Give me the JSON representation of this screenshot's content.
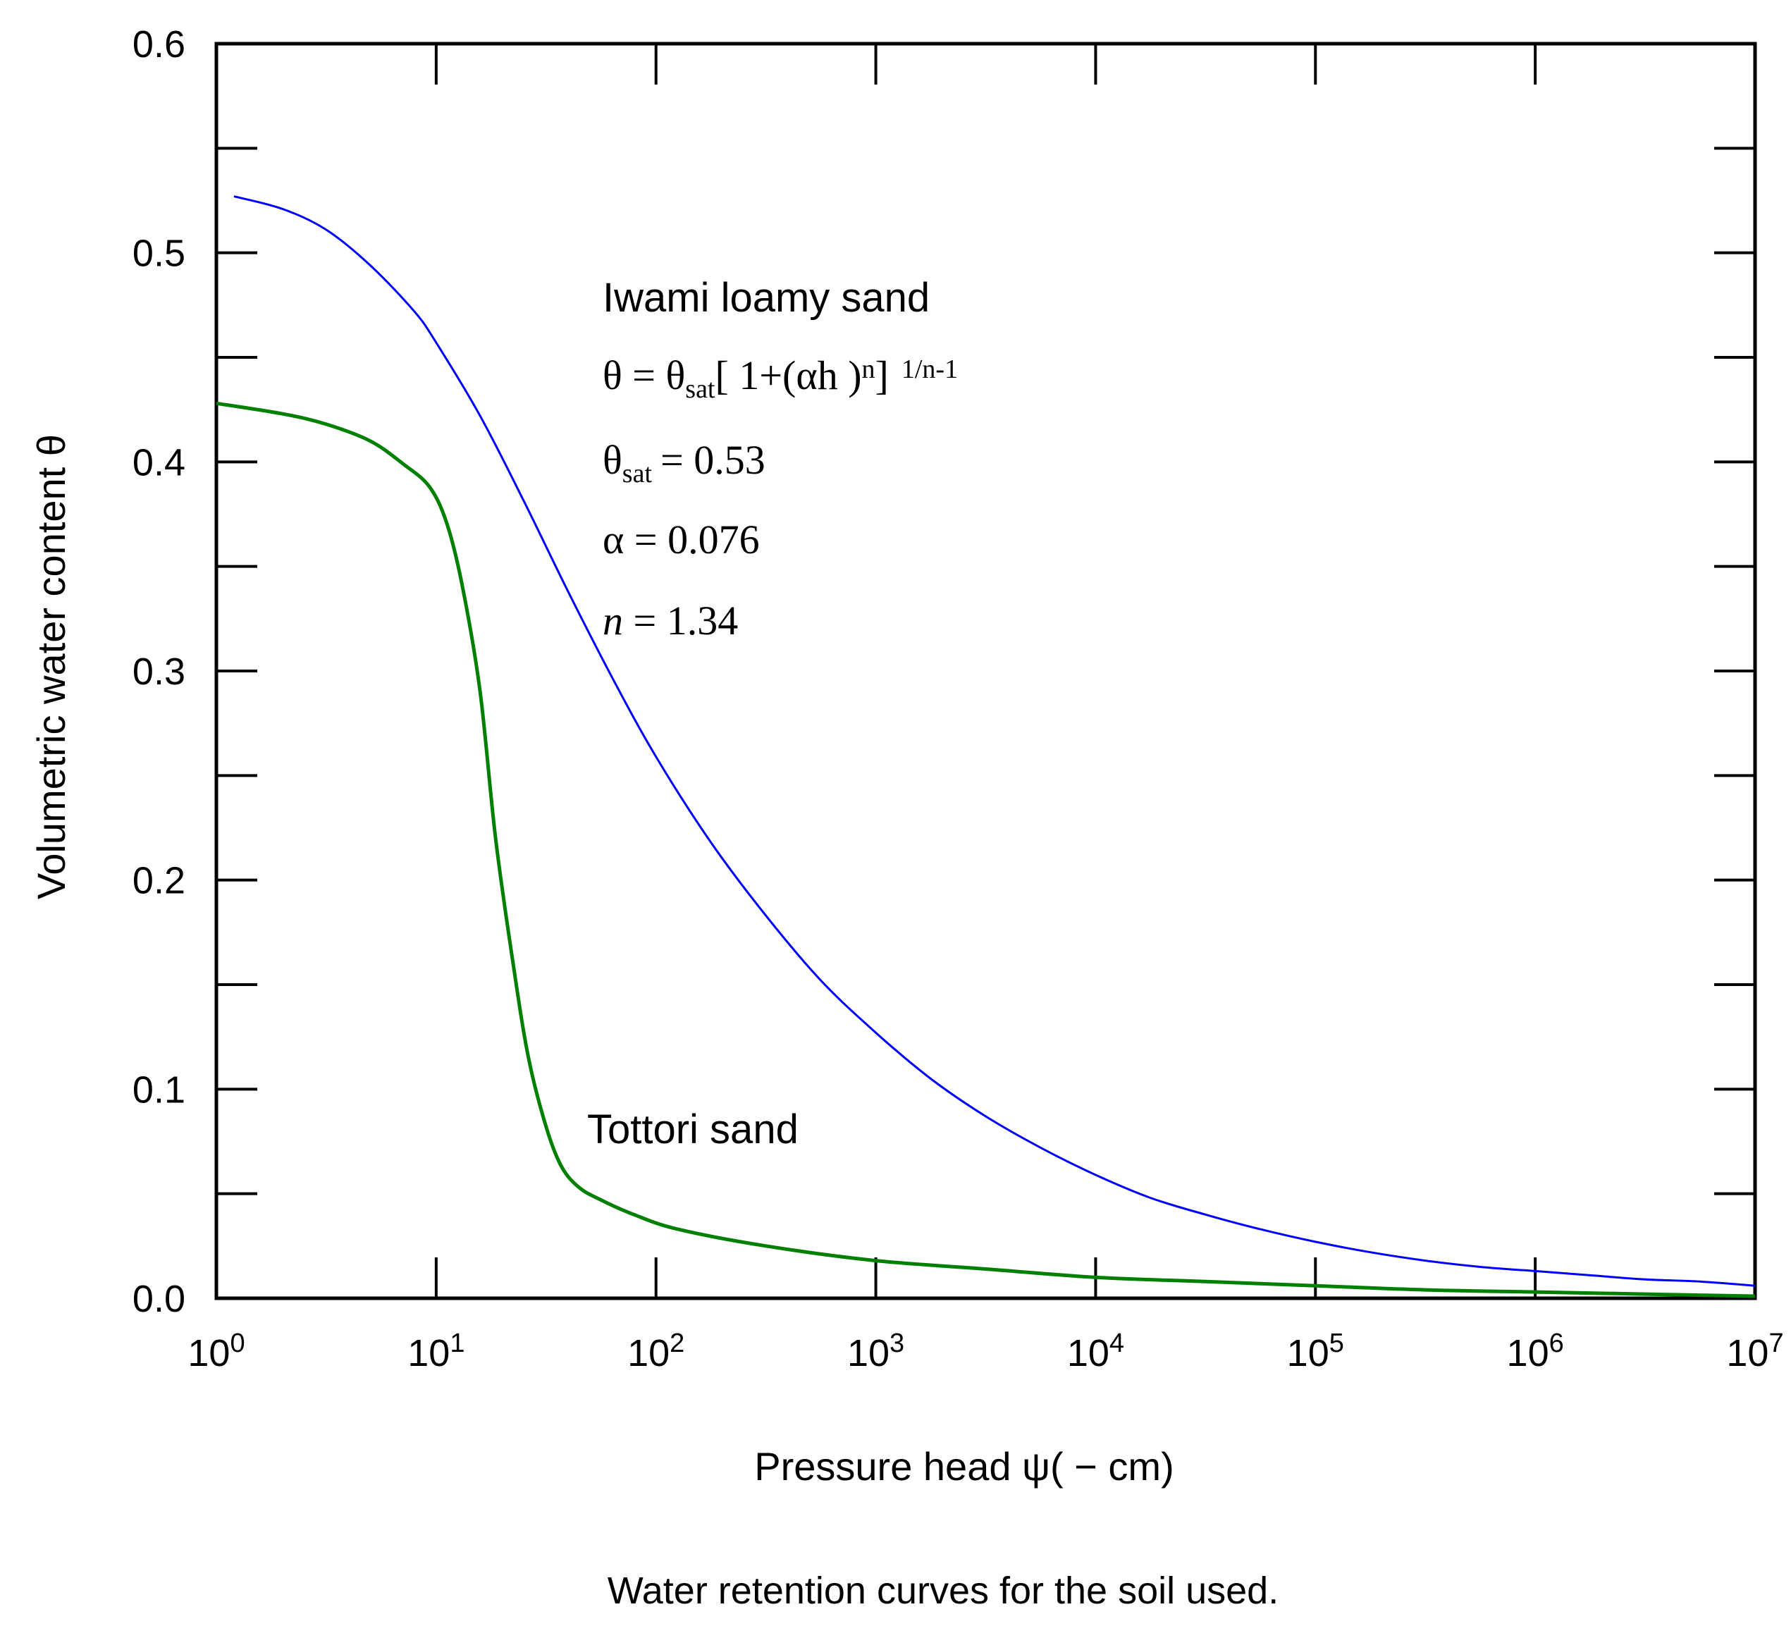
{
  "chart_data": {
    "type": "line",
    "title": "",
    "caption": "Water retention curves for the soil used.",
    "xlabel": "Pressure head ψ( − cm)",
    "ylabel": "Volumetric water content  θ",
    "x_scale": "log",
    "xlim": [
      1,
      10000000
    ],
    "ylim": [
      0.0,
      0.6
    ],
    "x_ticks": [
      {
        "base": "10",
        "exp": "0",
        "value": 1
      },
      {
        "base": "10",
        "exp": "1",
        "value": 10
      },
      {
        "base": "10",
        "exp": "2",
        "value": 100
      },
      {
        "base": "10",
        "exp": "3",
        "value": 1000
      },
      {
        "base": "10",
        "exp": "4",
        "value": 10000
      },
      {
        "base": "10",
        "exp": "5",
        "value": 100000
      },
      {
        "base": "10",
        "exp": "6",
        "value": 1000000
      },
      {
        "base": "10",
        "exp": "7",
        "value": 10000000
      }
    ],
    "y_ticks": [
      "0.0",
      "0.1",
      "0.2",
      "0.3",
      "0.4",
      "0.5",
      "0.6"
    ],
    "y_tick_values": [
      0.0,
      0.1,
      0.2,
      0.3,
      0.4,
      0.5,
      0.6
    ],
    "y_minor_ticks": [
      0.05,
      0.15,
      0.25,
      0.35,
      0.45,
      0.55
    ],
    "grid": false,
    "series": [
      {
        "name": "Iwami loamy sand",
        "color": "#0000ff",
        "log_x": [
          0.08,
          0.3,
          0.5,
          0.7,
          0.9,
          1.0,
          1.2,
          1.4,
          1.6,
          1.8,
          2.0,
          2.25,
          2.5,
          2.75,
          3.0,
          3.25,
          3.5,
          3.75,
          4.0,
          4.25,
          4.5,
          4.75,
          5.0,
          5.25,
          5.5,
          5.75,
          6.0,
          6.25,
          6.5,
          6.75,
          7.0
        ],
        "values": [
          0.527,
          0.521,
          0.511,
          0.494,
          0.472,
          0.457,
          0.422,
          0.381,
          0.338,
          0.297,
          0.259,
          0.218,
          0.183,
          0.152,
          0.127,
          0.105,
          0.087,
          0.072,
          0.059,
          0.048,
          0.04,
          0.033,
          0.027,
          0.022,
          0.018,
          0.015,
          0.013,
          0.011,
          0.009,
          0.008,
          0.006
        ]
      },
      {
        "name": "Tottori sand",
        "color": "#008000",
        "log_x": [
          0.0,
          0.3,
          0.5,
          0.7,
          0.85,
          0.97,
          1.05,
          1.12,
          1.2,
          1.27,
          1.35,
          1.42,
          1.5,
          1.57,
          1.65,
          1.75,
          1.9,
          2.1,
          2.5,
          3.0,
          3.5,
          4.0,
          4.5,
          5.0,
          5.5,
          6.0,
          6.5,
          7.0
        ],
        "values": [
          0.428,
          0.423,
          0.418,
          0.41,
          0.399,
          0.388,
          0.37,
          0.34,
          0.29,
          0.22,
          0.16,
          0.115,
          0.082,
          0.063,
          0.053,
          0.047,
          0.04,
          0.033,
          0.025,
          0.018,
          0.014,
          0.01,
          0.008,
          0.006,
          0.004,
          0.003,
          0.002,
          0.001
        ]
      }
    ],
    "annotations": {
      "iwami_label": "Iwami loamy sand",
      "eq_lhs": "θ = θ",
      "eq_sat_sub": "sat",
      "eq_body": "[ 1+(αh )",
      "eq_n_sup": "n",
      "eq_close": "]",
      "eq_exp": "1/n-1",
      "theta_sat_lhs": "θ",
      "theta_sat_sub": "sat",
      "theta_sat_value": "= 0.53",
      "alpha_line": "α = 0.076",
      "n_symbol": "n",
      "n_value": " = 1.34",
      "tottori_label": "Tottori sand"
    }
  }
}
